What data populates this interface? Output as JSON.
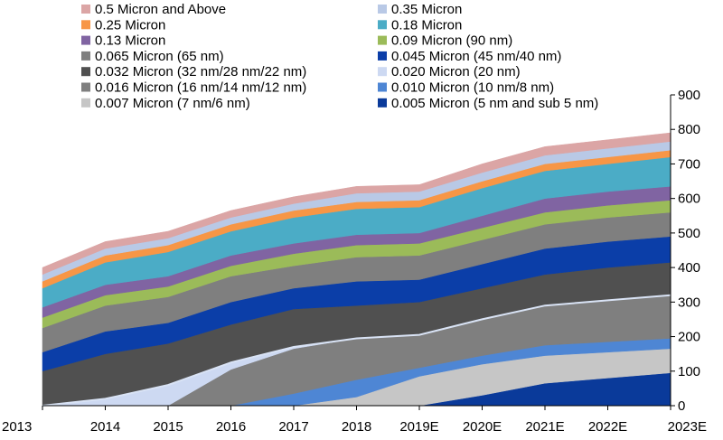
{
  "chart_data": {
    "type": "area",
    "stacked": true,
    "title": "",
    "xlabel": "",
    "ylabel": "",
    "ylim": [
      0,
      900
    ],
    "yticks": [
      0,
      100,
      200,
      300,
      400,
      500,
      600,
      700,
      800,
      900
    ],
    "y_axis_side": "right",
    "legend_position": "top",
    "categories": [
      "2013",
      "2014",
      "2015",
      "2016",
      "2017",
      "2018",
      "2019E",
      "2020E",
      "2021E",
      "2022E",
      "2023E"
    ],
    "series": [
      {
        "name": "0.005 Micron (5 nm and sub 5 nm)",
        "color": "#0a3a9a",
        "values": [
          0,
          0,
          0,
          0,
          0,
          0,
          0,
          30,
          65,
          80,
          95
        ]
      },
      {
        "name": "0.007 Micron (7 nm/6 nm)",
        "color": "#c6c6c6",
        "values": [
          0,
          0,
          0,
          0,
          0,
          25,
          85,
          90,
          80,
          75,
          70
        ]
      },
      {
        "name": "0.010 Micron (10 nm/8 nm)",
        "color": "#4e86d4",
        "values": [
          0,
          0,
          0,
          0,
          35,
          50,
          25,
          25,
          30,
          30,
          30
        ]
      },
      {
        "name": "0.016 Micron (16 nm/14 nm/12 nm)",
        "color": "#7f7f7f",
        "values": [
          0,
          0,
          0,
          105,
          130,
          120,
          95,
          105,
          115,
          120,
          125
        ]
      },
      {
        "name": "0.020 Micron (20 nm)",
        "color": "#cdd9f2",
        "values": [
          0,
          20,
          60,
          20,
          5,
          0,
          0,
          0,
          0,
          0,
          0
        ]
      },
      {
        "name": "0.032 Micron (32 nm/28 nm/22 nm)",
        "color": "#505050",
        "values": [
          100,
          130,
          120,
          110,
          110,
          95,
          95,
          90,
          90,
          95,
          95
        ]
      },
      {
        "name": "0.045 Micron (45 nm/40 nm)",
        "color": "#0b3ea8",
        "values": [
          55,
          65,
          60,
          65,
          60,
          70,
          65,
          70,
          75,
          75,
          75
        ]
      },
      {
        "name": "0.065 Micron (65 nm)",
        "color": "#7f7f7f",
        "values": [
          70,
          75,
          75,
          75,
          65,
          70,
          70,
          70,
          70,
          70,
          70
        ]
      },
      {
        "name": "0.09 Micron  (90 nm)",
        "color": "#9bbb59",
        "values": [
          30,
          30,
          30,
          30,
          35,
          35,
          35,
          35,
          35,
          35,
          35
        ]
      },
      {
        "name": "0.13 Micron",
        "color": "#8064a2",
        "values": [
          30,
          30,
          30,
          30,
          30,
          30,
          30,
          35,
          40,
          40,
          40
        ]
      },
      {
        "name": "0.18 Micron",
        "color": "#4bacc6",
        "values": [
          55,
          65,
          70,
          70,
          75,
          75,
          75,
          80,
          80,
          80,
          85
        ]
      },
      {
        "name": "0.25 Micron",
        "color": "#f79646",
        "values": [
          20,
          20,
          20,
          20,
          20,
          20,
          20,
          20,
          20,
          20,
          20
        ]
      },
      {
        "name": "0.35 Micron",
        "color": "#b9c9e6",
        "values": [
          20,
          20,
          20,
          20,
          20,
          25,
          25,
          25,
          25,
          25,
          25
        ]
      },
      {
        "name": "0.5 Micron and Above",
        "color": "#dba5a5",
        "values": [
          20,
          20,
          20,
          20,
          20,
          20,
          20,
          25,
          25,
          25,
          25
        ]
      }
    ],
    "boundary_line": {
      "color": "#d9e3f5",
      "after_series_index": 4
    },
    "legend_left": [
      "0.5 Micron and Above",
      "0.25 Micron",
      "0.13 Micron",
      "0.065 Micron (65 nm)",
      "0.032 Micron (32 nm/28 nm/22 nm)",
      "0.016 Micron (16 nm/14 nm/12 nm)",
      "0.007 Micron (7 nm/6 nm)"
    ],
    "legend_right": [
      "0.35 Micron",
      "0.18 Micron",
      "0.09 Micron  (90 nm)",
      "0.045 Micron (45 nm/40 nm)",
      "0.020 Micron (20 nm)",
      "0.010 Micron (10 nm/8 nm)",
      "0.005 Micron (5 nm and sub 5 nm)"
    ]
  }
}
